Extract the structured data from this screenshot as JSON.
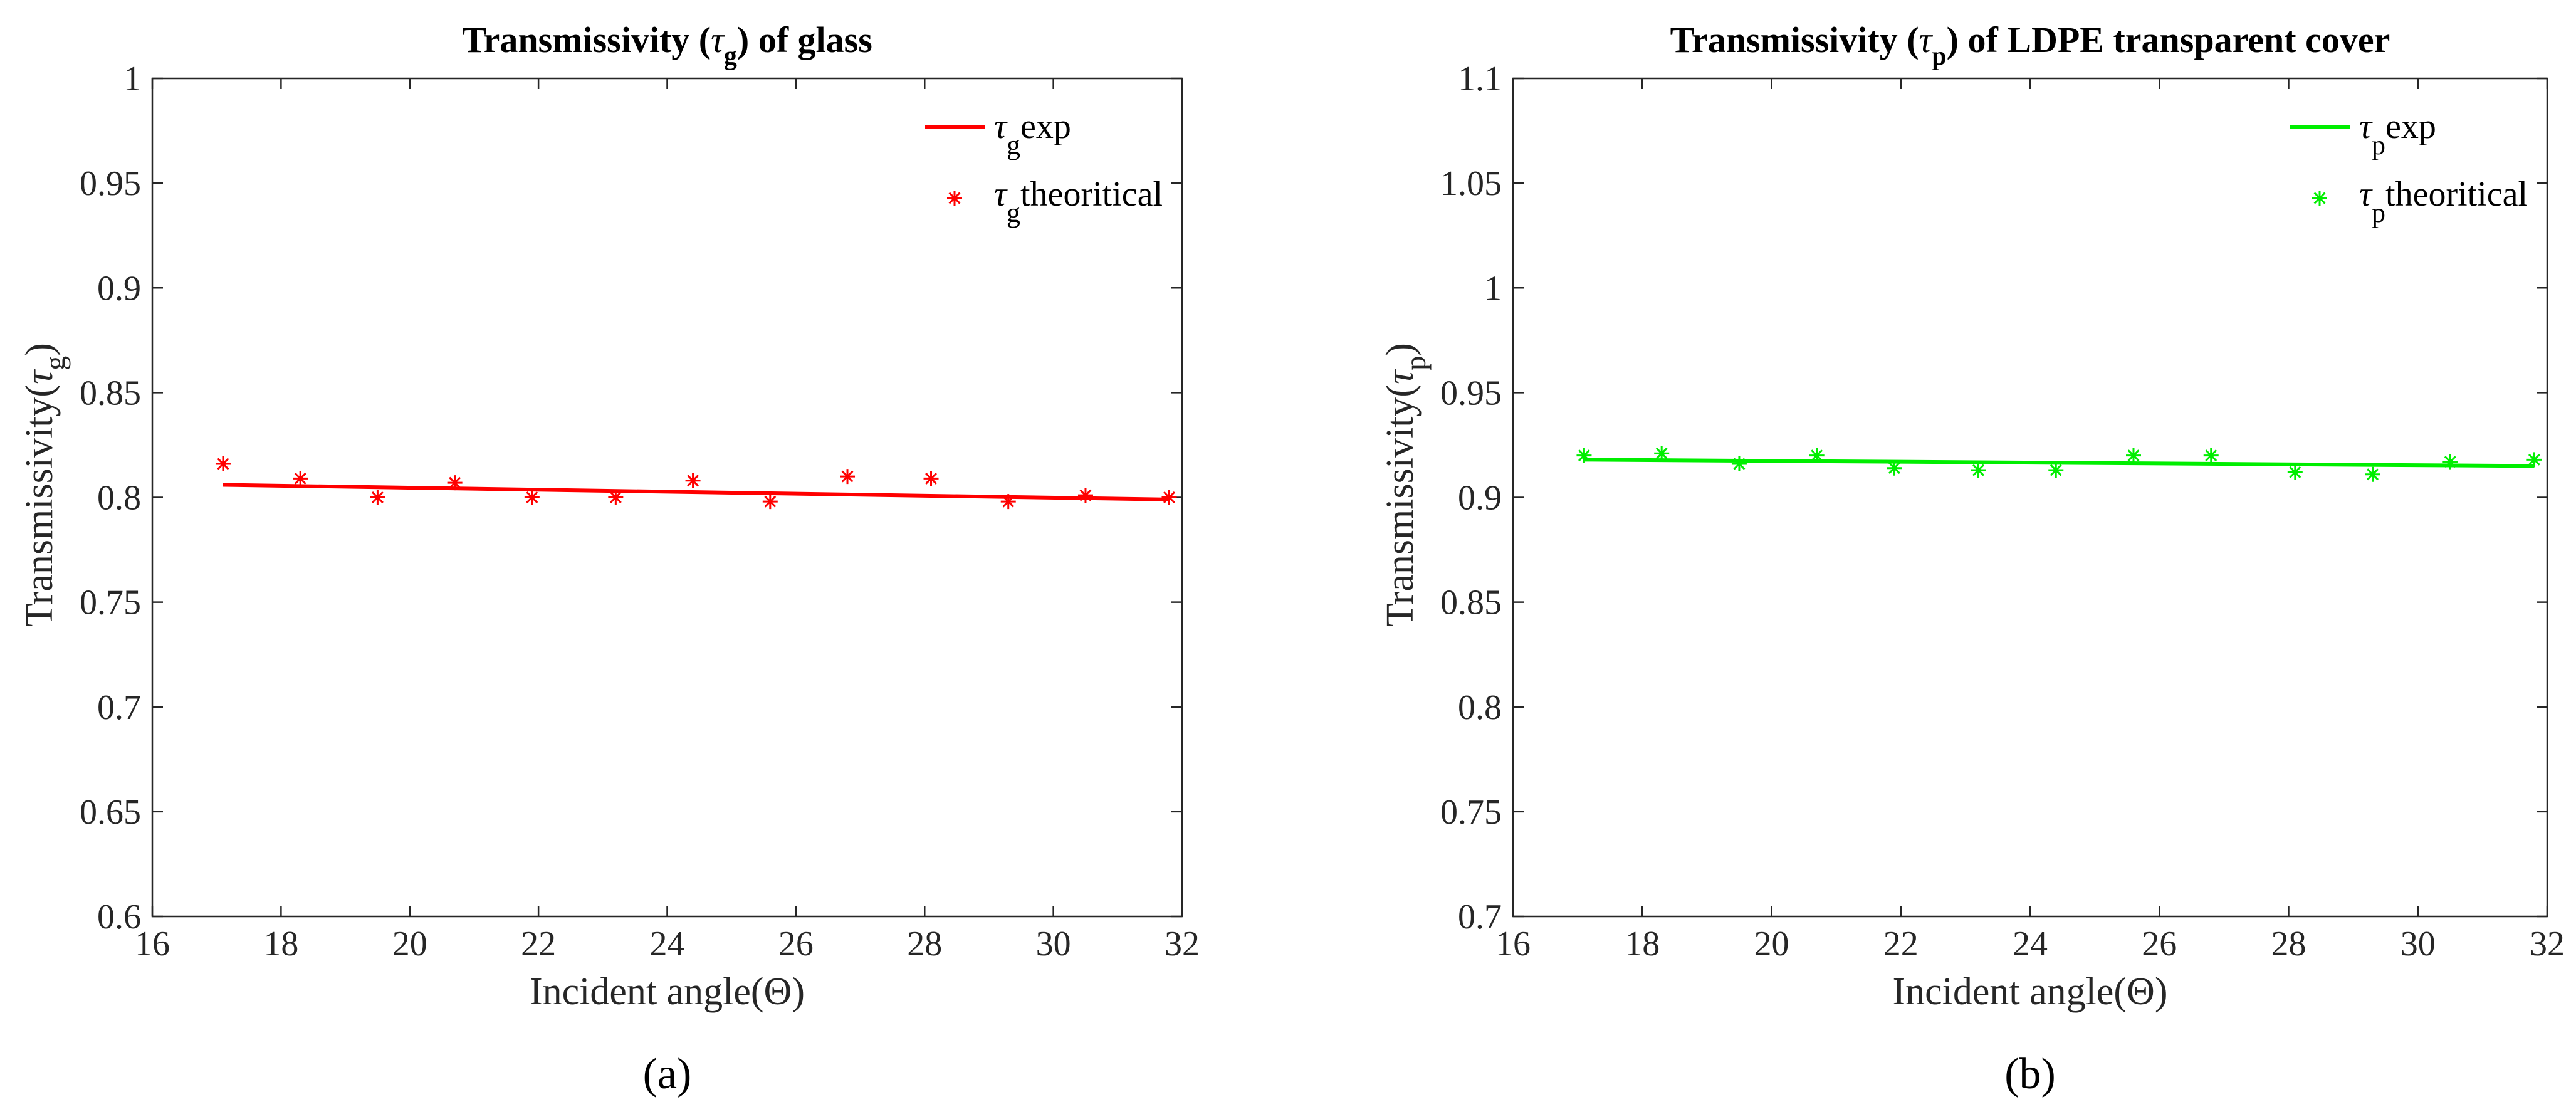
{
  "chart_data": [
    {
      "type": "line",
      "panel": "a",
      "title": {
        "pre": "Transmissivity (",
        "sym": "τ",
        "sub": "g",
        "post": ") of glass"
      },
      "xlabel": "Incident angle(Θ)",
      "ylabel": {
        "pre": "Transmissivity(",
        "sym": "τ",
        "sub": "g",
        "post": ")"
      },
      "caption": "(a)",
      "xlim": [
        16,
        32
      ],
      "ylim": [
        0.6,
        1.0
      ],
      "xticks": [
        16,
        18,
        20,
        22,
        24,
        26,
        28,
        30,
        32
      ],
      "yticks": [
        0.6,
        0.65,
        0.7,
        0.75,
        0.8,
        0.85,
        0.9,
        0.95,
        1
      ],
      "ytick_labels": [
        "0.6",
        "0.65",
        "0.7",
        "0.75",
        "0.8",
        "0.85",
        "0.9",
        "0.95",
        "1"
      ],
      "color": "#ff0000",
      "legend_position": "top-right",
      "series": [
        {
          "name": "exp",
          "legend": {
            "sym": "τ",
            "sub": "g",
            "text": "exp"
          },
          "style": "line",
          "x": [
            17.1,
            31.8
          ],
          "y": [
            0.806,
            0.799
          ]
        },
        {
          "name": "theoritical",
          "legend": {
            "sym": "τ",
            "sub": "g",
            "text": "theoritical"
          },
          "style": "asterisk",
          "x": [
            17.1,
            18.3,
            19.5,
            20.7,
            21.9,
            23.2,
            24.4,
            25.6,
            26.8,
            28.1,
            29.3,
            30.5,
            31.8
          ],
          "y": [
            0.816,
            0.809,
            0.8,
            0.807,
            0.8,
            0.8,
            0.808,
            0.798,
            0.81,
            0.809,
            0.798,
            0.801,
            0.8
          ]
        }
      ]
    },
    {
      "type": "line",
      "panel": "b",
      "title": {
        "pre": "Transmissivity (",
        "sym": "τ",
        "sub": "p",
        "post": ") of LDPE transparent cover"
      },
      "xlabel": "Incident angle(Θ)",
      "ylabel": {
        "pre": "Transmissivity(",
        "sym": "τ",
        "sub": "p",
        "post": ")"
      },
      "caption": "(b)",
      "xlim": [
        16,
        32
      ],
      "ylim": [
        0.7,
        1.1
      ],
      "xticks": [
        16,
        18,
        20,
        22,
        24,
        26,
        28,
        30,
        32
      ],
      "yticks": [
        0.7,
        0.75,
        0.8,
        0.85,
        0.9,
        0.95,
        1,
        1.05,
        1.1
      ],
      "ytick_labels": [
        "0.7",
        "0.75",
        "0.8",
        "0.85",
        "0.9",
        "0.95",
        "1",
        "1.05",
        "1.1"
      ],
      "color": "#00ee00",
      "legend_position": "top-right",
      "series": [
        {
          "name": "exp",
          "legend": {
            "sym": "τ",
            "sub": "p",
            "text": "exp"
          },
          "style": "line",
          "x": [
            17.1,
            31.8
          ],
          "y": [
            0.918,
            0.915
          ]
        },
        {
          "name": "theoritical",
          "legend": {
            "sym": "τ",
            "sub": "p",
            "text": "theoritical"
          },
          "style": "asterisk",
          "x": [
            17.1,
            18.3,
            19.5,
            20.7,
            21.9,
            23.2,
            24.4,
            25.6,
            26.8,
            28.1,
            29.3,
            30.5,
            31.8
          ],
          "y": [
            0.92,
            0.921,
            0.916,
            0.92,
            0.914,
            0.913,
            0.913,
            0.92,
            0.92,
            0.912,
            0.911,
            0.917,
            0.918
          ]
        }
      ]
    }
  ]
}
